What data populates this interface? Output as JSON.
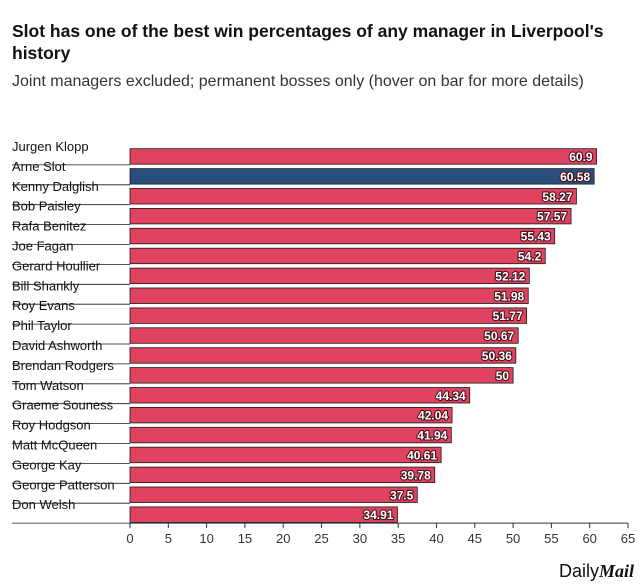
{
  "header": {
    "title": "Slot has one of the best win percentages of any manager in Liverpool's history",
    "subtitle": "Joint managers excluded; permanent bosses only (hover on bar for more details)"
  },
  "branding": {
    "part1": "Daily",
    "part2": "Mail"
  },
  "chart_data": {
    "type": "bar",
    "orientation": "horizontal",
    "title": "Slot has one of the best win percentages of any manager in Liverpool's history",
    "subtitle": "Joint managers excluded; permanent bosses only (hover on bar for more details)",
    "xlabel": "",
    "ylabel": "",
    "xlim": [
      0,
      65
    ],
    "xticks": [
      0,
      5,
      10,
      15,
      20,
      25,
      30,
      35,
      40,
      45,
      50,
      55,
      60,
      65
    ],
    "categories": [
      "Jurgen Klopp",
      "Arne Slot",
      "Kenny Dalglish",
      "Bob Paisley",
      "Rafa Benitez",
      "Joe Fagan",
      "Gerard Houllier",
      "Bill Shankly",
      "Roy Evans",
      "Phil Taylor",
      "David Ashworth",
      "Brendan Rodgers",
      "Tom Watson",
      "Graeme Souness",
      "Roy Hodgson",
      "Matt McQueen",
      "George Kay",
      "George Patterson",
      "Don Welsh"
    ],
    "values": [
      60.9,
      60.58,
      58.27,
      57.57,
      55.43,
      54.2,
      52.12,
      51.98,
      51.77,
      50.67,
      50.36,
      50,
      44.34,
      42.04,
      41.94,
      40.61,
      39.78,
      37.5,
      34.91
    ],
    "highlight": "Arne Slot",
    "colors": {
      "bar": "#e0435f",
      "highlight": "#2b4f7d",
      "label_bg": "#ffffff",
      "gridline": "#1a1a1a"
    }
  }
}
